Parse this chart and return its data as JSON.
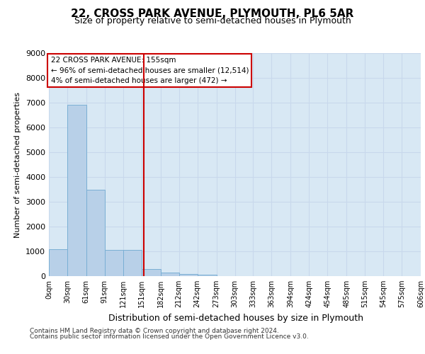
{
  "title1": "22, CROSS PARK AVENUE, PLYMOUTH, PL6 5AR",
  "title2": "Size of property relative to semi-detached houses in Plymouth",
  "xlabel": "Distribution of semi-detached houses by size in Plymouth",
  "ylabel": "Number of semi-detached properties",
  "footer1": "Contains HM Land Registry data © Crown copyright and database right 2024.",
  "footer2": "Contains public sector information licensed under the Open Government Licence v3.0.",
  "annotation_title": "22 CROSS PARK AVENUE: 155sqm",
  "annotation_line1": "← 96% of semi-detached houses are smaller (12,514)",
  "annotation_line2": "4% of semi-detached houses are larger (472) →",
  "property_size": 155,
  "bin_edges": [
    0,
    30,
    61,
    91,
    121,
    151,
    182,
    212,
    242,
    273,
    303,
    333,
    363,
    394,
    424,
    454,
    485,
    515,
    545,
    575,
    606
  ],
  "bar_heights": [
    1100,
    6900,
    3500,
    1050,
    1050,
    300,
    150,
    100,
    50,
    0,
    0,
    0,
    0,
    0,
    0,
    0,
    0,
    0,
    0,
    0
  ],
  "bar_color": "#b8d0e8",
  "bar_edge_color": "#7aafd4",
  "red_line_color": "#cc0000",
  "annotation_box_color": "#ffffff",
  "annotation_box_edge": "#cc0000",
  "grid_color": "#c8d8ec",
  "bg_color": "#d8e8f4",
  "ylim": [
    0,
    9000
  ],
  "yticks": [
    0,
    1000,
    2000,
    3000,
    4000,
    5000,
    6000,
    7000,
    8000,
    9000
  ]
}
